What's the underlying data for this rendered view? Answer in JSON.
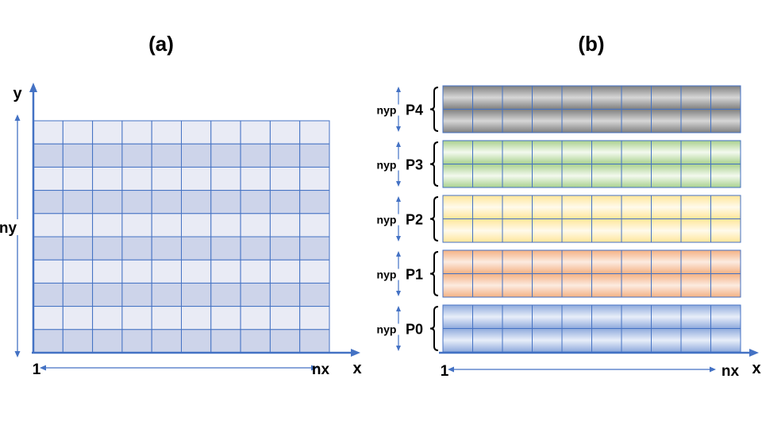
{
  "panel_a": {
    "label": "(a)",
    "axis_y": "y",
    "axis_x": "x",
    "dim_y": "ny",
    "dim_x_start": "1",
    "dim_x_end": "nx",
    "grid_cols": 10,
    "grid_rows": 10,
    "row_colors": [
      "#cdd4ea",
      "#e9ebf5"
    ],
    "line_color": "#4472c4"
  },
  "panel_b": {
    "label": "(b)",
    "axis_x": "x",
    "dim_x_start": "1",
    "dim_x_end": "nx",
    "grid_cols": 10,
    "rows_per_block": 2,
    "line_color": "#4472c4",
    "blocks": [
      {
        "name": "P4",
        "dim": "nyp",
        "color_dark": "#7f7f7f",
        "color_light": "#d6d6d6"
      },
      {
        "name": "P3",
        "dim": "nyp",
        "color_dark": "#a9d18e",
        "color_light": "#f3f9ee"
      },
      {
        "name": "P2",
        "dim": "nyp",
        "color_dark": "#ffe699",
        "color_light": "#fffaeb"
      },
      {
        "name": "P1",
        "dim": "nyp",
        "color_dark": "#f4b183",
        "color_light": "#fcebe0"
      },
      {
        "name": "P0",
        "dim": "nyp",
        "color_dark": "#8faadc",
        "color_light": "#e8eef9"
      }
    ]
  }
}
